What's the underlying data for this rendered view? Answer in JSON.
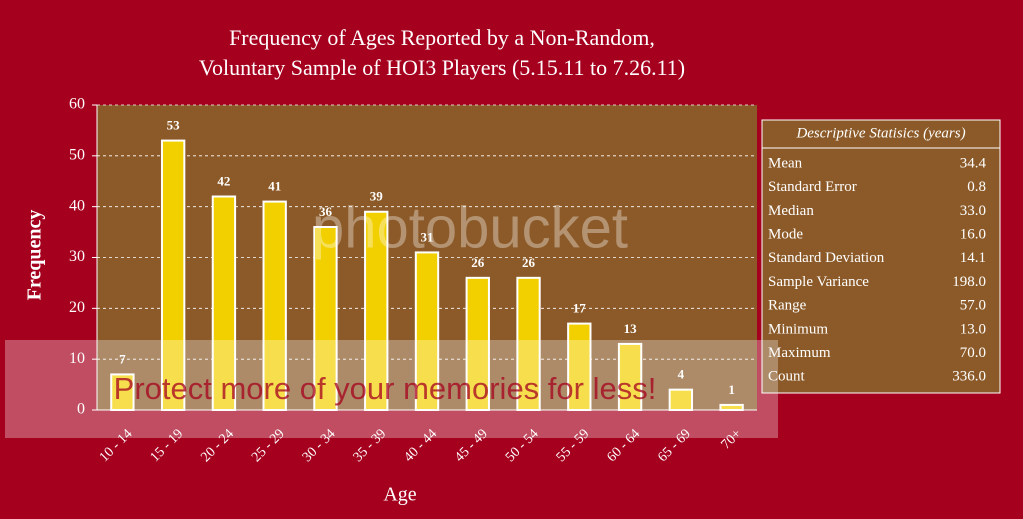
{
  "chart_data": {
    "type": "bar",
    "title": [
      "Frequency of Ages Reported by a Non-Random,",
      "Voluntary Sample of HOI3 Players (5.15.11 to 7.26.11)"
    ],
    "x_label": "Age",
    "y_label": "Frequency",
    "categories": [
      "10 - 14",
      "15 - 19",
      "20 - 24",
      "25 - 29",
      "30 - 34",
      "35 - 39",
      "40 - 44",
      "45 - 49",
      "50 - 54",
      "55 - 59",
      "60 - 64",
      "65 - 69",
      "70+"
    ],
    "values": [
      7,
      53,
      42,
      41,
      36,
      39,
      31,
      26,
      26,
      17,
      13,
      4,
      1
    ],
    "color": "#f2d000",
    "ylim": [
      0,
      60
    ],
    "yticks": [
      0,
      10,
      20,
      30,
      40,
      50,
      60
    ],
    "grid": true
  },
  "table": {
    "title": "Descriptive Statisics (years)",
    "rows": [
      [
        "Mean",
        "34.4"
      ],
      [
        "Standard Error",
        "0.8"
      ],
      [
        "Median",
        "33.0"
      ],
      [
        "Mode",
        "16.0"
      ],
      [
        "Standard Deviation",
        "14.1"
      ],
      [
        "Sample Variance",
        "198.0"
      ],
      [
        "Range",
        "57.0"
      ],
      [
        "Minimum",
        "13.0"
      ],
      [
        "Maximum",
        "70.0"
      ],
      [
        "Count",
        "336.0"
      ]
    ]
  },
  "watermark": {
    "logo": "photobucket",
    "banner": "Protect more of your memories for less!"
  }
}
